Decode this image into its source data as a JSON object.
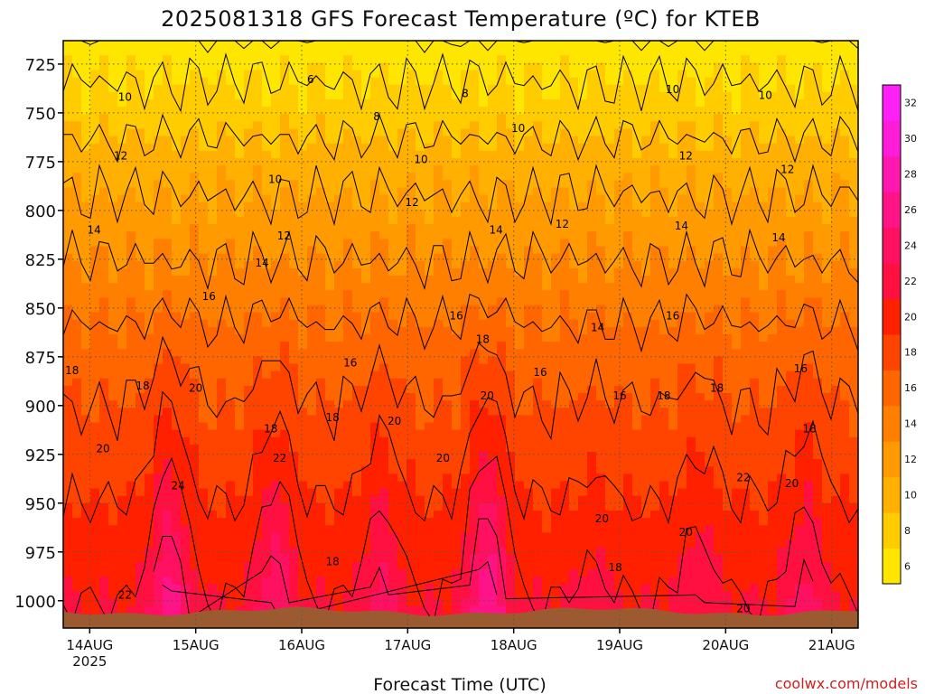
{
  "title": "2025081318 GFS Forecast Temperature (ºC) for KTEB",
  "credit": "coolwx.com/models",
  "chart_data": {
    "type": "heatmap",
    "title": "2025081318 GFS Forecast Temperature (ºC) for KTEB",
    "xlabel": "Forecast Time (UTC)",
    "ylabel": "",
    "x_ticks": [
      {
        "label": "14AUG",
        "sub": "2025",
        "hour": 6
      },
      {
        "label": "15AUG",
        "sub": "",
        "hour": 30
      },
      {
        "label": "16AUG",
        "sub": "",
        "hour": 54
      },
      {
        "label": "17AUG",
        "sub": "",
        "hour": 78
      },
      {
        "label": "18AUG",
        "sub": "",
        "hour": 102
      },
      {
        "label": "19AUG",
        "sub": "",
        "hour": 126
      },
      {
        "label": "20AUG",
        "sub": "",
        "hour": 150
      },
      {
        "label": "21AUG",
        "sub": "",
        "hour": 174
      }
    ],
    "x_range_hours": [
      0,
      180
    ],
    "y_ticks": [
      "725",
      "750",
      "775",
      "800",
      "825",
      "850",
      "875",
      "900",
      "925",
      "950",
      "975",
      "1000"
    ],
    "y_range_hPa": [
      713,
      1014
    ],
    "y_axis_inverted": true,
    "grid": true,
    "colorbar": {
      "ticks": [
        "6",
        "8",
        "10",
        "12",
        "14",
        "16",
        "18",
        "20",
        "22",
        "24",
        "26",
        "28",
        "30",
        "32"
      ],
      "levels": [
        6,
        8,
        10,
        12,
        14,
        16,
        18,
        20,
        22,
        24,
        26,
        28,
        30,
        32,
        34
      ],
      "colors": [
        "#ffe600",
        "#ffcc00",
        "#ffb000",
        "#ff9a00",
        "#ff8000",
        "#ff6600",
        "#ff4400",
        "#ff2000",
        "#ff1040",
        "#ff1060",
        "#ff1488",
        "#ff18b0",
        "#ff1cd8",
        "#ff20f8"
      ],
      "min_color": "#ffe600"
    },
    "series": [
      {
        "name": "Temperature",
        "unit": "ºC",
        "profile_levels_hPa": [
          713,
          725,
          750,
          775,
          800,
          825,
          850,
          875,
          900,
          925,
          950,
          975,
          1000,
          1014
        ],
        "base_profile_C": [
          6.5,
          7.5,
          9.0,
          11.0,
          12.5,
          14.0,
          15.5,
          17.0,
          18.0,
          19.0,
          20.0,
          21.0,
          22.0,
          22.5
        ],
        "diurnal_peak_hours": [
          24,
          48,
          72,
          96,
          120,
          144,
          168
        ],
        "diurnal_amplitude_C": [
          5,
          4,
          3,
          6,
          1,
          2,
          3
        ]
      }
    ],
    "contour_labels": [
      {
        "text": "10",
        "hour": 14,
        "hPa": 742
      },
      {
        "text": "12",
        "hour": 13,
        "hPa": 772
      },
      {
        "text": "14",
        "hour": 7,
        "hPa": 810
      },
      {
        "text": "18",
        "hour": 2,
        "hPa": 882
      },
      {
        "text": "18",
        "hour": 18,
        "hPa": 890
      },
      {
        "text": "20",
        "hour": 9,
        "hPa": 922
      },
      {
        "text": "22",
        "hour": 14,
        "hPa": 997
      },
      {
        "text": "6",
        "hour": 56,
        "hPa": 733
      },
      {
        "text": "8",
        "hour": 71,
        "hPa": 752
      },
      {
        "text": "8",
        "hour": 91,
        "hPa": 740
      },
      {
        "text": "10",
        "hour": 103,
        "hPa": 758
      },
      {
        "text": "10",
        "hour": 48,
        "hPa": 784
      },
      {
        "text": "10",
        "hour": 81,
        "hPa": 774
      },
      {
        "text": "12",
        "hour": 50,
        "hPa": 813
      },
      {
        "text": "12",
        "hour": 79,
        "hPa": 796
      },
      {
        "text": "12",
        "hour": 113,
        "hPa": 807
      },
      {
        "text": "14",
        "hour": 45,
        "hPa": 827
      },
      {
        "text": "14",
        "hour": 98,
        "hPa": 810
      },
      {
        "text": "16",
        "hour": 33,
        "hPa": 844
      },
      {
        "text": "16",
        "hour": 65,
        "hPa": 878
      },
      {
        "text": "16",
        "hour": 89,
        "hPa": 854
      },
      {
        "text": "18",
        "hour": 95,
        "hPa": 866
      },
      {
        "text": "20",
        "hour": 30,
        "hPa": 891
      },
      {
        "text": "18",
        "hour": 47,
        "hPa": 912
      },
      {
        "text": "18",
        "hour": 61,
        "hPa": 906
      },
      {
        "text": "24",
        "hour": 26,
        "hPa": 941
      },
      {
        "text": "22",
        "hour": 49,
        "hPa": 927
      },
      {
        "text": "20",
        "hour": 75,
        "hPa": 908
      },
      {
        "text": "20",
        "hour": 86,
        "hPa": 927
      },
      {
        "text": "20",
        "hour": 96,
        "hPa": 895
      },
      {
        "text": "18",
        "hour": 61,
        "hPa": 980
      },
      {
        "text": "16",
        "hour": 108,
        "hPa": 883
      },
      {
        "text": "16",
        "hour": 126,
        "hPa": 895
      },
      {
        "text": "14",
        "hour": 121,
        "hPa": 860
      },
      {
        "text": "10",
        "hour": 138,
        "hPa": 738
      },
      {
        "text": "12",
        "hour": 141,
        "hPa": 772
      },
      {
        "text": "14",
        "hour": 140,
        "hPa": 808
      },
      {
        "text": "16",
        "hour": 138,
        "hPa": 854
      },
      {
        "text": "18",
        "hour": 136,
        "hPa": 895
      },
      {
        "text": "18",
        "hour": 148,
        "hPa": 891
      },
      {
        "text": "20",
        "hour": 122,
        "hPa": 958
      },
      {
        "text": "20",
        "hour": 141,
        "hPa": 965
      },
      {
        "text": "18",
        "hour": 125,
        "hPa": 983
      },
      {
        "text": "10",
        "hour": 159,
        "hPa": 741
      },
      {
        "text": "12",
        "hour": 164,
        "hPa": 779
      },
      {
        "text": "14",
        "hour": 162,
        "hPa": 814
      },
      {
        "text": "16",
        "hour": 167,
        "hPa": 881
      },
      {
        "text": "18",
        "hour": 169,
        "hPa": 912
      },
      {
        "text": "22",
        "hour": 154,
        "hPa": 937
      },
      {
        "text": "20",
        "hour": 165,
        "hPa": 940
      },
      {
        "text": "20",
        "hour": 154,
        "hPa": 1004
      }
    ]
  }
}
